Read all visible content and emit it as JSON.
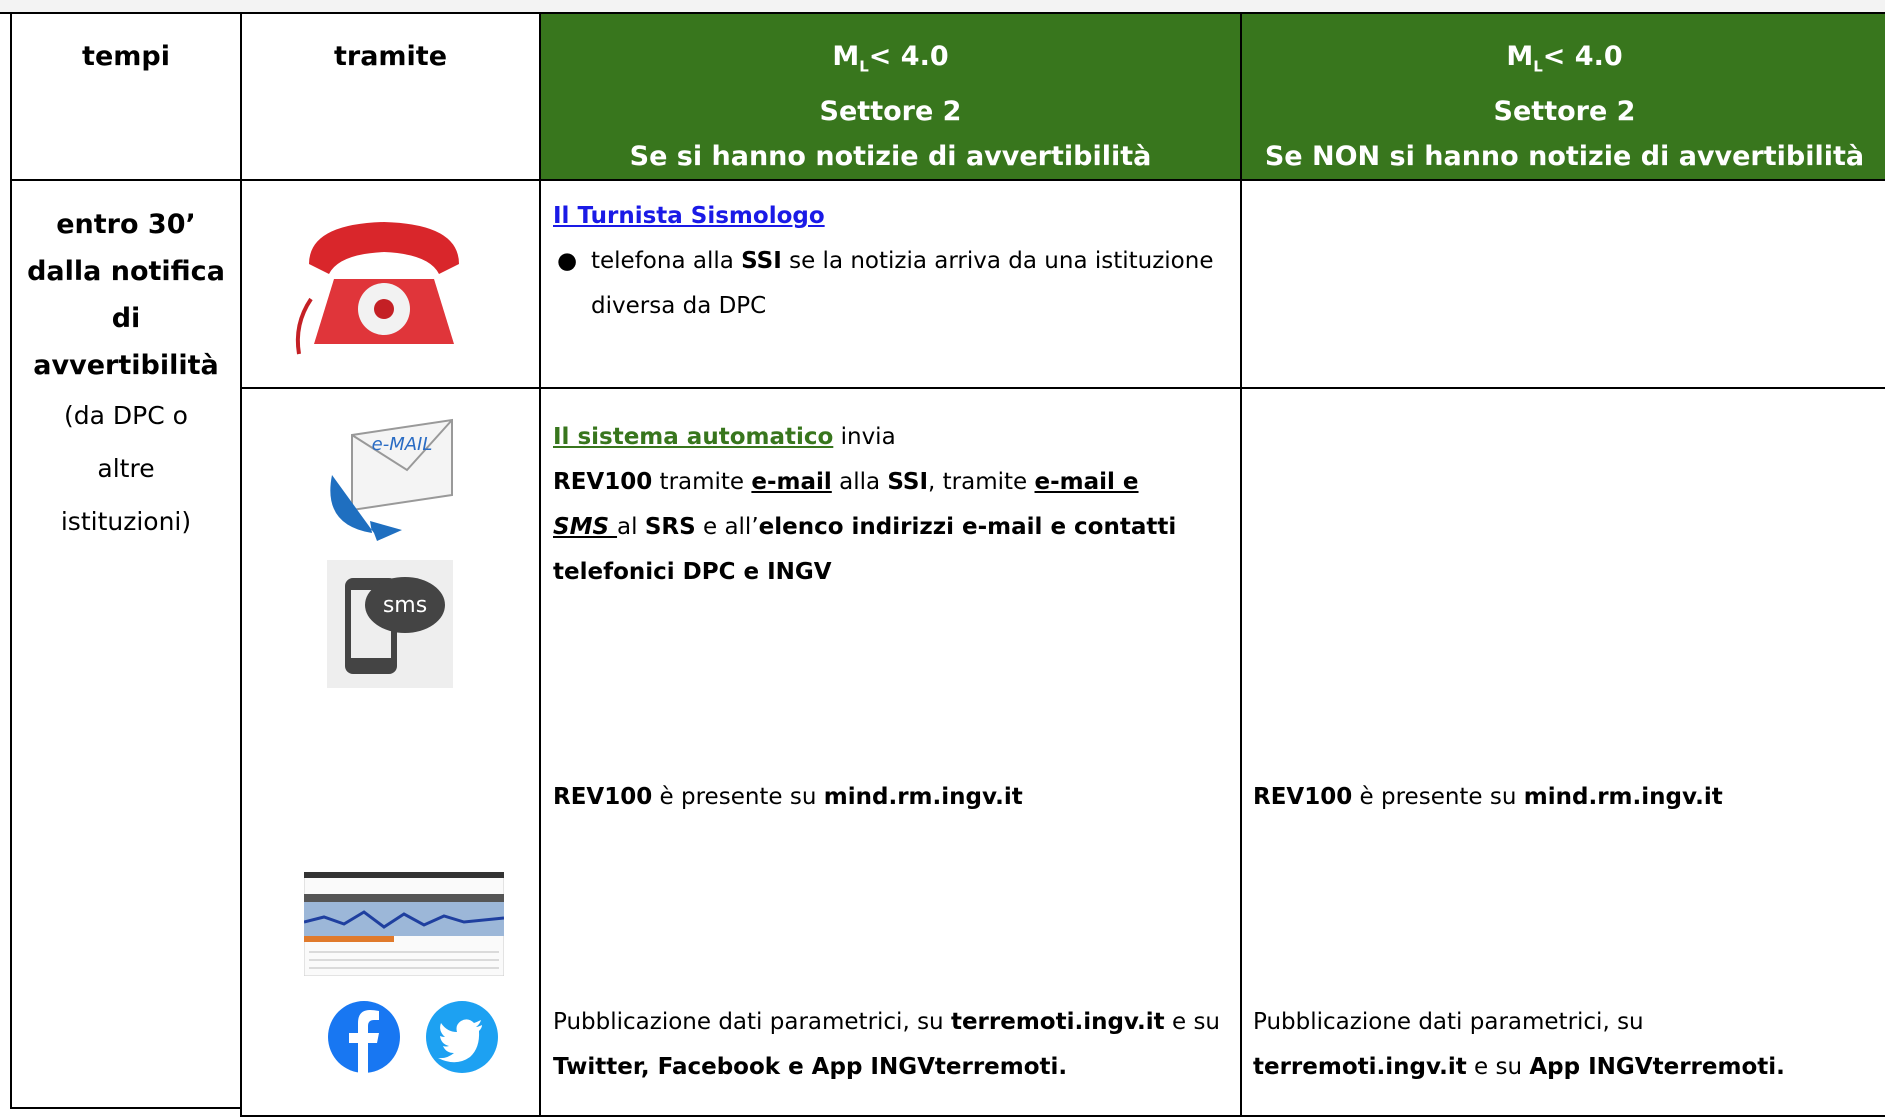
{
  "table": {
    "headers": [
      {
        "text": "tempi"
      },
      {
        "text": "tramite"
      },
      {
        "m": "M",
        "sub": "L",
        "rest": "< 4.0",
        "line2": "Settore 2",
        "line3": "Se si hanno notizie di avvertibilità"
      },
      {
        "m": "M",
        "sub": "L",
        "rest": "< 4.0",
        "line2": "Settore 2",
        "line3": "Se NON si hanno notizie di avvertibilità"
      }
    ],
    "time_cell": {
      "bold_lines": [
        "entro 30’",
        "dalla notifica",
        "di",
        "avvertibilità"
      ],
      "lines": [
        "(da DPC o",
        "altre",
        "istituzioni)"
      ]
    },
    "icons": {
      "email": "e-MAIL",
      "sms": "sms"
    },
    "row1": {
      "link": "Il Turnista Sismologo",
      "bullet": [
        {
          "text": "telefona alla ",
          "style": "n"
        },
        {
          "text": "SSI",
          "style": "b"
        },
        {
          "text": "  se la notizia arriva da una istituzione diversa da DPC",
          "style": "n"
        }
      ]
    },
    "row2": {
      "intro": [
        {
          "text": "Il sistema automatico",
          "style": "link"
        },
        {
          "text": " invia",
          "style": "n"
        }
      ],
      "para": [
        {
          "text": "REV100",
          "style": "b"
        },
        {
          "text": " tramite ",
          "style": "n"
        },
        {
          "text": "e-mail",
          "style": "bu"
        },
        {
          "text": " alla ",
          "style": "n"
        },
        {
          "text": "SSI",
          "style": "b"
        },
        {
          "text": ", tramite ",
          "style": "n"
        },
        {
          "text": "e-mail e ",
          "style": "bu"
        },
        {
          "text": "SMS ",
          "style": "bui"
        },
        {
          "text": "al ",
          "style": "n"
        },
        {
          "text": "SRS",
          "style": "b"
        },
        {
          "text": " e all’",
          "style": "n"
        },
        {
          "text": "elenco indirizzi e-mail e contatti telefonici DPC e INGV",
          "style": "b"
        }
      ],
      "rev_left": [
        {
          "text": "REV100",
          "style": "b"
        },
        {
          "text": " è presente su ",
          "style": "n"
        },
        {
          "text": "mind.rm.ingv.it",
          "style": "b"
        }
      ],
      "rev_right": [
        {
          "text": "REV100",
          "style": "b"
        },
        {
          "text": " è presente su ",
          "style": "n"
        },
        {
          "text": "mind.rm.ingv.it",
          "style": "b"
        }
      ],
      "pub_left": [
        {
          "text": "Pubblicazione dati parametrici, su ",
          "style": "n"
        },
        {
          "text": "terremoti.ingv.it",
          "style": "b"
        },
        {
          "text": " e su ",
          "style": "n"
        },
        {
          "text": "Twitter, Facebook e App INGVterremoti.",
          "style": "b"
        }
      ],
      "pub_right": [
        {
          "text": "Pubblicazione dati parametrici, su ",
          "style": "n"
        },
        {
          "text": "terremoti.ingv.it",
          "style": "b"
        },
        {
          "text": " e su ",
          "style": "n"
        },
        {
          "text": "App INGVterremoti.",
          "style": "b"
        }
      ]
    }
  }
}
